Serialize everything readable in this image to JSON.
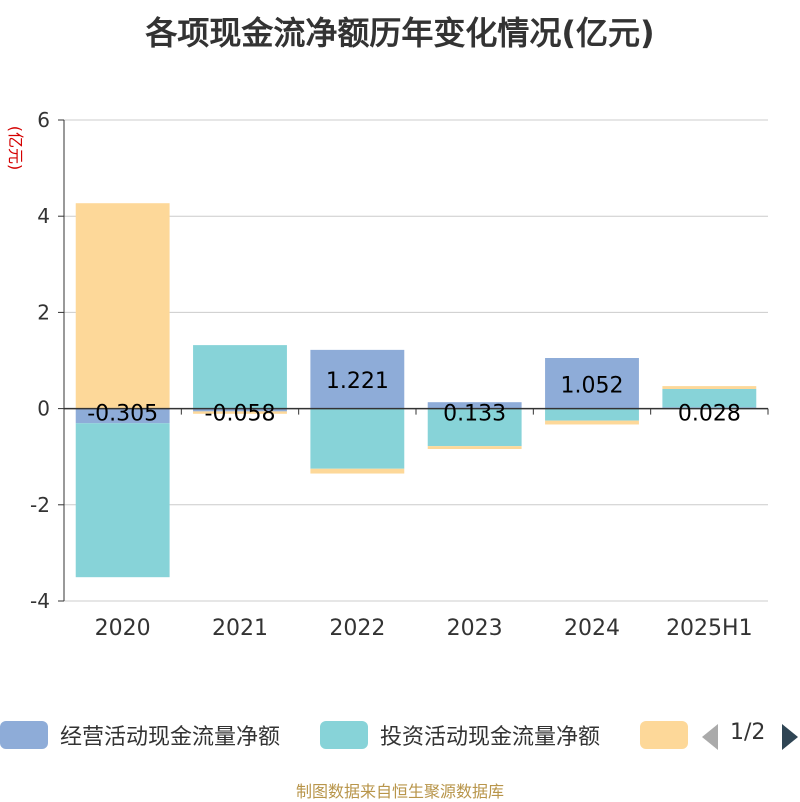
{
  "colors": {
    "operating": "#8eacd8",
    "investing": "#87d3d8",
    "financing": "#fdd899",
    "axis": "#333333",
    "grid": "#cccccc",
    "ylabel": "#d40000",
    "source": "#b8954a"
  },
  "chart_data": {
    "type": "bar",
    "stacked": true,
    "title": "各项现金流净额历年变化情况(亿元)",
    "ylabel": "(亿元)",
    "xlabel": "",
    "ylim": [
      -4,
      6
    ],
    "yticks": [
      6,
      4,
      2,
      0,
      -2,
      -4
    ],
    "grid": true,
    "legend_position": "bottom",
    "categories": [
      "2020",
      "2021",
      "2022",
      "2023",
      "2024",
      "2025H1"
    ],
    "series": [
      {
        "name": "经营活动现金流量净额",
        "values": [
          -0.305,
          -0.058,
          1.221,
          0.133,
          1.052,
          0.028
        ],
        "labels": [
          "-0.305",
          "-0.058",
          "1.221",
          "0.133",
          "1.052",
          "0.028"
        ]
      },
      {
        "name": "投资活动现金流量净额",
        "values": [
          -3.2,
          1.32,
          -1.25,
          -0.78,
          -0.25,
          0.38
        ]
      },
      {
        "name": "",
        "values": [
          4.27,
          -0.05,
          -0.1,
          -0.06,
          -0.08,
          0.06
        ]
      }
    ]
  },
  "legend": {
    "items": [
      "经营活动现金流量净额",
      "投资活动现金流量净额",
      ""
    ],
    "pager": "1/2"
  },
  "source": "制图数据来自恒生聚源数据库"
}
